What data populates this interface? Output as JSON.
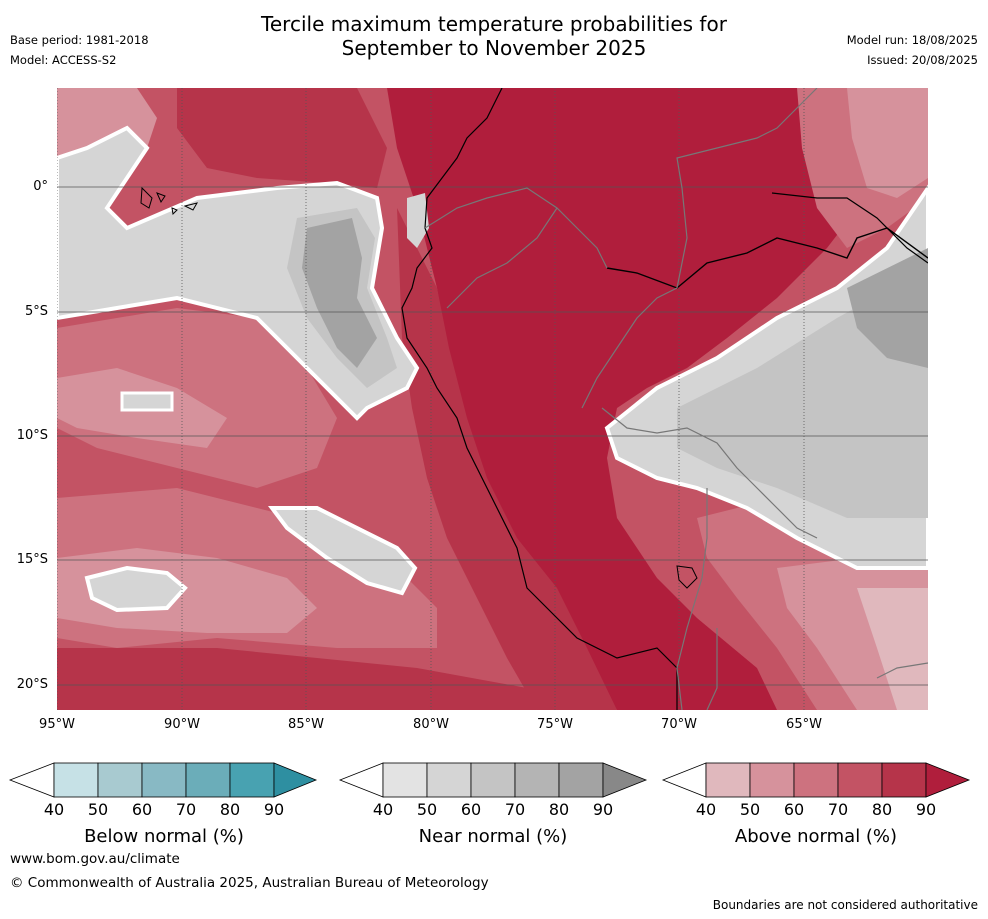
{
  "header": {
    "title_line1": "Tercile maximum temperature probabilities for",
    "title_line2": "September to November 2025",
    "base_period": "Base period: 1981-2018",
    "model": "Model: ACCESS-S2",
    "model_run": "Model run: 18/08/2025",
    "issued": "Issued: 20/08/2025"
  },
  "map": {
    "lat_labels": [
      "0°",
      "5°S",
      "10°S",
      "15°S",
      "20°S"
    ],
    "lon_labels": [
      "95°W",
      "90°W",
      "85°W",
      "80°W",
      "75°W",
      "70°W",
      "65°W"
    ]
  },
  "legend": {
    "below": {
      "caption": "Below normal (%)",
      "ticks": [
        "40",
        "50",
        "60",
        "70",
        "80",
        "90"
      ],
      "colors": [
        "#c6e1e6",
        "#a8cad0",
        "#88b9c4",
        "#6badb9",
        "#48a2b1",
        "#2e8fa1"
      ]
    },
    "near": {
      "caption": "Near normal (%)",
      "ticks": [
        "40",
        "50",
        "60",
        "70",
        "80",
        "90"
      ],
      "colors": [
        "#e3e3e3",
        "#d5d5d5",
        "#c4c4c4",
        "#b4b4b4",
        "#a3a3a3",
        "#888888"
      ]
    },
    "above": {
      "caption": "Above normal (%)",
      "ticks": [
        "40",
        "50",
        "60",
        "70",
        "80",
        "90"
      ],
      "colors": [
        "#e0b8bd",
        "#d6929c",
        "#cd727f",
        "#c35364",
        "#b6344a",
        "#b01e3c"
      ]
    }
  },
  "footer": {
    "url": "www.bom.gov.au/climate",
    "copyright": "© Commonwealth of Australia 2025, Australian Bureau of Meteorology",
    "disclaimer": "Boundaries are not considered authoritative"
  }
}
